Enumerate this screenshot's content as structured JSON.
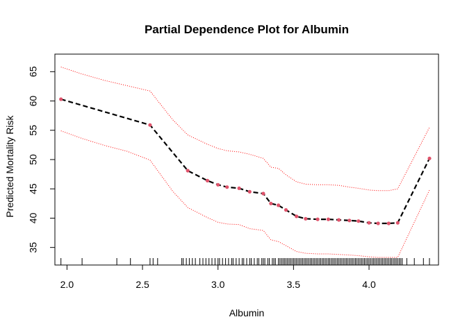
{
  "chart_data": {
    "type": "line",
    "title": "Partial Dependence Plot for Albumin",
    "xlabel": "Albumin",
    "ylabel": "Predicted Mortality Risk",
    "xlim": [
      1.92,
      4.46
    ],
    "ylim": [
      32.0,
      68.0
    ],
    "xticks": [
      2.0,
      2.5,
      3.0,
      3.5,
      4.0
    ],
    "xtick_labels": [
      "2.0",
      "2.5",
      "3.0",
      "3.5",
      "4.0"
    ],
    "yticks": [
      35,
      40,
      45,
      50,
      55,
      60,
      65
    ],
    "ytick_labels": [
      "35",
      "40",
      "45",
      "50",
      "55",
      "60",
      "65"
    ],
    "colors": {
      "estimate_line": "#000000",
      "points": "#DF536B",
      "bands": "#FF0000",
      "rug": "#000000"
    },
    "grid": false,
    "series": [
      {
        "x": [
          1.96,
          2.55,
          2.8,
          2.93,
          3.0,
          3.06,
          3.14,
          3.21,
          3.3,
          3.35,
          3.4,
          3.45,
          3.52,
          3.58,
          3.66,
          3.73,
          3.8,
          3.87,
          3.93,
          4.0,
          4.06,
          4.13,
          4.19,
          4.4
        ],
        "y": [
          60.3,
          55.9,
          48.1,
          46.4,
          45.7,
          45.3,
          45.1,
          44.5,
          44.2,
          42.5,
          42.2,
          41.4,
          40.3,
          39.9,
          39.8,
          39.8,
          39.7,
          39.6,
          39.5,
          39.2,
          39.1,
          39.1,
          39.2,
          50.2
        ]
      },
      {
        "x": [
          1.96,
          2.1,
          2.25,
          2.4,
          2.55,
          2.7,
          2.8,
          2.93,
          3.0,
          3.06,
          3.14,
          3.21,
          3.3,
          3.35,
          3.4,
          3.45,
          3.52,
          3.58,
          3.66,
          3.73,
          3.8,
          3.87,
          3.93,
          4.0,
          4.06,
          4.13,
          4.19,
          4.4
        ],
        "y": [
          65.8,
          64.6,
          63.5,
          62.6,
          61.7,
          56.8,
          54.2,
          52.6,
          51.9,
          51.5,
          51.3,
          50.9,
          50.2,
          48.7,
          48.5,
          47.4,
          46.2,
          45.8,
          45.7,
          45.7,
          45.6,
          45.3,
          45.1,
          44.8,
          44.7,
          44.7,
          45.0,
          55.5
        ]
      },
      {
        "x": [
          1.96,
          2.1,
          2.25,
          2.4,
          2.55,
          2.7,
          2.8,
          2.93,
          3.0,
          3.06,
          3.14,
          3.21,
          3.3,
          3.35,
          3.4,
          3.45,
          3.52,
          3.58,
          3.66,
          3.73,
          3.8,
          3.87,
          3.93,
          4.0,
          4.06,
          4.13,
          4.19,
          4.4
        ],
        "y": [
          54.9,
          53.6,
          52.4,
          51.4,
          49.9,
          44.6,
          41.8,
          40.1,
          39.3,
          39.0,
          38.9,
          38.2,
          37.9,
          36.3,
          36.0,
          35.3,
          34.3,
          34.0,
          33.9,
          33.9,
          33.8,
          33.7,
          33.6,
          33.4,
          33.3,
          33.3,
          33.3,
          44.8
        ]
      }
    ],
    "rug": [
      1.96,
      2.1,
      2.33,
      2.42,
      2.55,
      2.57,
      2.6,
      2.76,
      2.77,
      2.79,
      2.81,
      2.83,
      2.85,
      2.88,
      2.9,
      2.92,
      2.94,
      2.96,
      2.98,
      3.0,
      3.01,
      3.03,
      3.05,
      3.07,
      3.09,
      3.1,
      3.12,
      3.14,
      3.16,
      3.17,
      3.19,
      3.21,
      3.22,
      3.24,
      3.26,
      3.27,
      3.29,
      3.3,
      3.31,
      3.33,
      3.34,
      3.36,
      3.37,
      3.38,
      3.4,
      3.41,
      3.42,
      3.43,
      3.44,
      3.45,
      3.46,
      3.47,
      3.48,
      3.49,
      3.5,
      3.51,
      3.52,
      3.53,
      3.54,
      3.55,
      3.56,
      3.57,
      3.58,
      3.59,
      3.6,
      3.61,
      3.62,
      3.63,
      3.64,
      3.65,
      3.66,
      3.67,
      3.68,
      3.69,
      3.7,
      3.71,
      3.72,
      3.73,
      3.74,
      3.75,
      3.76,
      3.77,
      3.78,
      3.79,
      3.8,
      3.81,
      3.82,
      3.83,
      3.84,
      3.85,
      3.86,
      3.87,
      3.88,
      3.89,
      3.9,
      3.91,
      3.92,
      3.93,
      3.94,
      3.95,
      3.96,
      3.97,
      3.98,
      3.99,
      4.0,
      4.01,
      4.02,
      4.03,
      4.04,
      4.05,
      4.06,
      4.07,
      4.08,
      4.09,
      4.1,
      4.11,
      4.12,
      4.13,
      4.14,
      4.15,
      4.16,
      4.17,
      4.18,
      4.19,
      4.2,
      4.21,
      4.22,
      4.25,
      4.3,
      4.36,
      4.4
    ]
  }
}
